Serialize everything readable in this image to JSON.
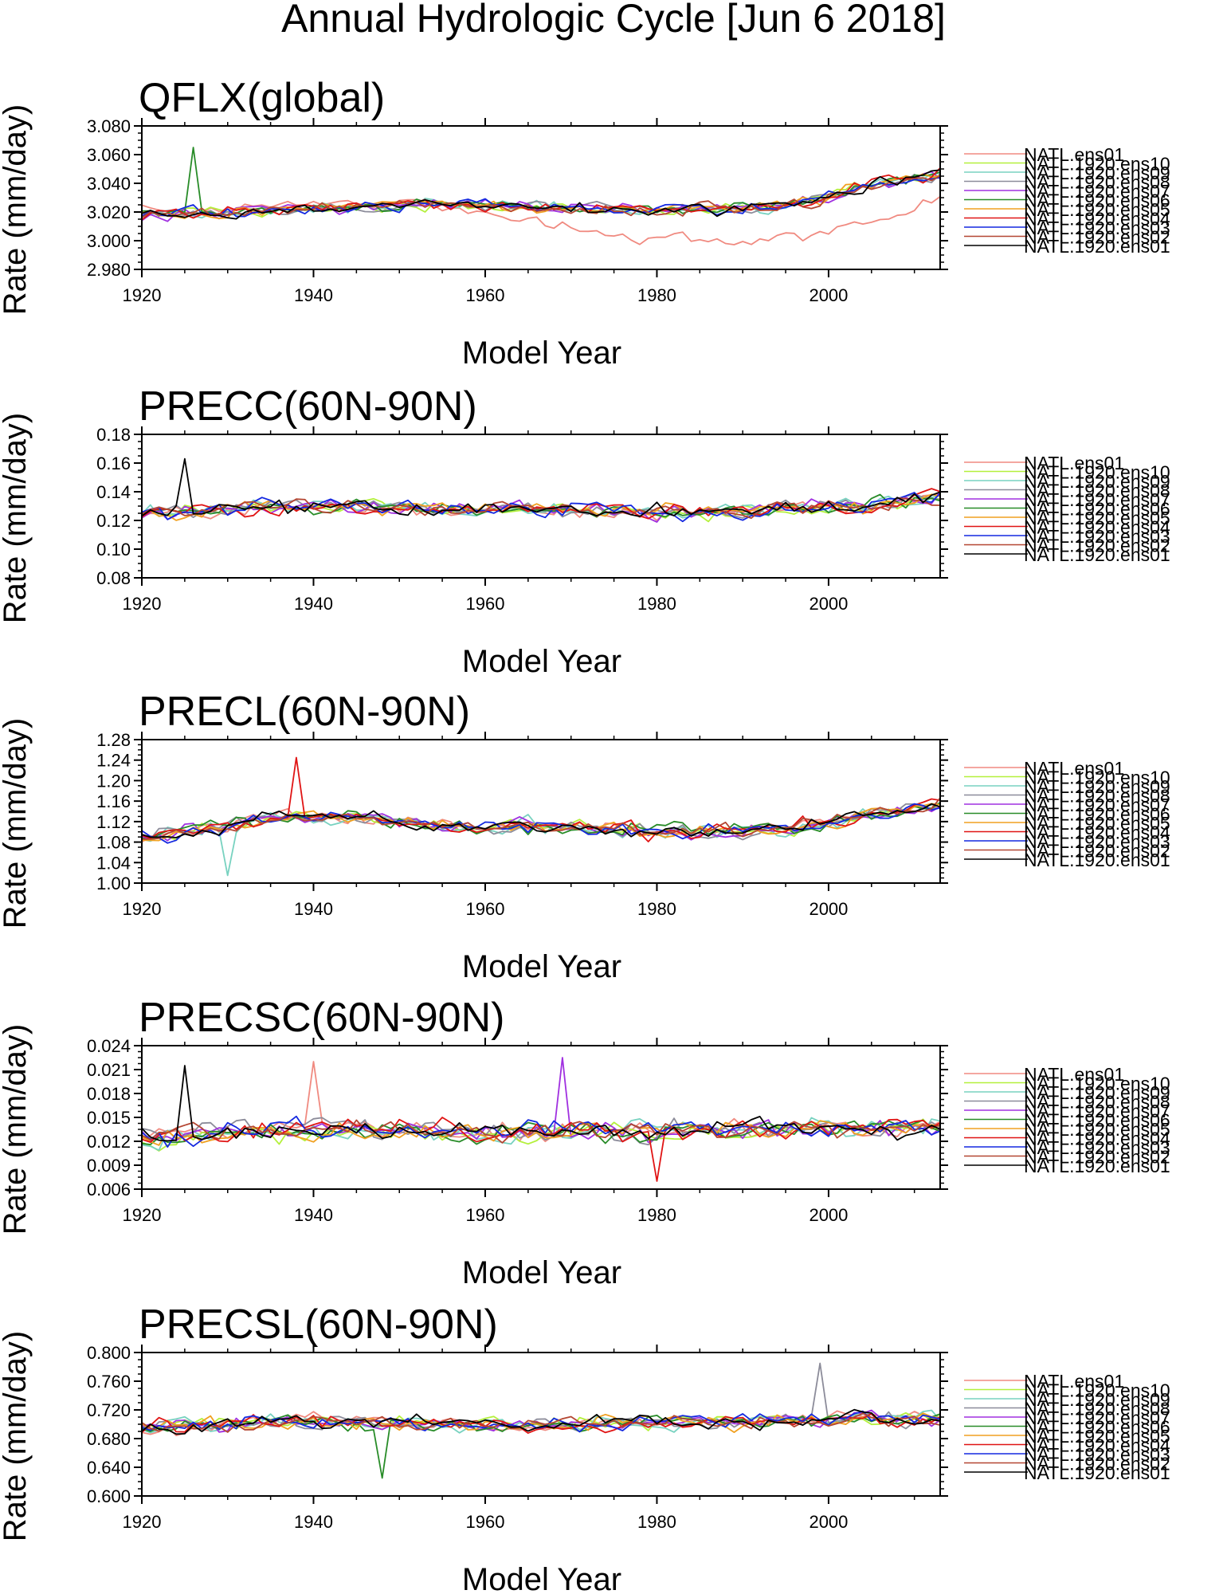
{
  "figure": {
    "title": "Annual Hydrologic Cycle [Jun  6 2018]"
  },
  "legend": {
    "entries": [
      {
        "name": "NATL.ens01",
        "color": "#f08a80"
      },
      {
        "name": "NATL.1920.ens10",
        "color": "#b4f03c"
      },
      {
        "name": "NATL.1920.ens09",
        "color": "#78d2c0"
      },
      {
        "name": "NATL.1920.ens08",
        "color": "#8c8c9a"
      },
      {
        "name": "NATL.1920.ens07",
        "color": "#a030e0"
      },
      {
        "name": "NATL.1920.ens06",
        "color": "#288c28"
      },
      {
        "name": "NATL.1920.ens05",
        "color": "#f0a020"
      },
      {
        "name": "NATL.1920.ens04",
        "color": "#e01414"
      },
      {
        "name": "NATL.1920.ens03",
        "color": "#1428e0"
      },
      {
        "name": "NATL.1920.ens02",
        "color": "#b44632"
      },
      {
        "name": "NATL.1920.ens01",
        "color": "#000000"
      }
    ]
  },
  "chart_data": [
    {
      "type": "line",
      "title": "QFLX(global)",
      "xlabel": "Model Year",
      "ylabel": "Rate (mm/day)",
      "xlim": [
        1920,
        2013
      ],
      "ylim": [
        2.98,
        3.08
      ],
      "xticks": [
        "1920",
        "1940",
        "1960",
        "1980",
        "2000"
      ],
      "yticks": [
        "2.980",
        "3.000",
        "3.020",
        "3.040",
        "3.060",
        "3.080"
      ],
      "x_start": 1920,
      "x_end": 2013,
      "series_base": [
        3.018,
        3.02,
        3.022,
        3.024,
        3.026,
        3.025,
        3.022,
        3.022,
        3.022,
        3.024,
        3.038,
        3.046
      ],
      "series_amplitude": 0.009,
      "overrides": [
        {
          "series": "NATL.ens01",
          "base": [
            3.02,
            3.022,
            3.025,
            3.026,
            3.026,
            3.018,
            3.008,
            3.0,
            3.0,
            3.004,
            3.012,
            3.03
          ],
          "amplitude": 0.01
        },
        {
          "series": "NATL.1920.ens06",
          "spikes": [
            [
              1926,
              3.065
            ]
          ]
        }
      ]
    },
    {
      "type": "line",
      "title": "PRECC(60N-90N)",
      "xlabel": "Model Year",
      "ylabel": "Rate (mm/day)",
      "xlim": [
        1920,
        2013
      ],
      "ylim": [
        0.08,
        0.18
      ],
      "xticks": [
        "1920",
        "1940",
        "1960",
        "1980",
        "2000"
      ],
      "yticks": [
        "0.08",
        "0.10",
        "0.12",
        "0.14",
        "0.16",
        "0.18"
      ],
      "x_start": 1920,
      "x_end": 2013,
      "series_base": [
        0.124,
        0.128,
        0.13,
        0.13,
        0.128,
        0.128,
        0.128,
        0.126,
        0.126,
        0.128,
        0.13,
        0.136
      ],
      "series_amplitude": 0.011,
      "overrides": [
        {
          "series": "NATL.1920.ens01",
          "spikes": [
            [
              1925,
              0.163
            ]
          ]
        }
      ]
    },
    {
      "type": "line",
      "title": "PRECL(60N-90N)",
      "xlabel": "Model Year",
      "ylabel": "Rate (mm/day)",
      "xlim": [
        1920,
        2013
      ],
      "ylim": [
        1.0,
        1.28
      ],
      "xticks": [
        "1920",
        "1940",
        "1960",
        "1980",
        "2000"
      ],
      "yticks": [
        "1.00",
        "1.04",
        "1.08",
        "1.12",
        "1.16",
        "1.20",
        "1.24",
        "1.28"
      ],
      "x_start": 1920,
      "x_end": 2013,
      "series_base": [
        1.09,
        1.11,
        1.13,
        1.13,
        1.11,
        1.11,
        1.11,
        1.1,
        1.1,
        1.11,
        1.13,
        1.15
      ],
      "series_amplitude": 0.03,
      "overrides": [
        {
          "series": "NATL.1920.ens04",
          "spikes": [
            [
              1938,
              1.245
            ]
          ]
        },
        {
          "series": "NATL.1920.ens09",
          "spikes": [
            [
              1930,
              1.015
            ]
          ]
        }
      ]
    },
    {
      "type": "line",
      "title": "PRECSC(60N-90N)",
      "xlabel": "Model Year",
      "ylabel": "Rate (mm/day)",
      "xlim": [
        1920,
        2013
      ],
      "ylim": [
        0.006,
        0.024
      ],
      "xticks": [
        "1920",
        "1940",
        "1960",
        "1980",
        "2000"
      ],
      "yticks": [
        "0.006",
        "0.009",
        "0.012",
        "0.015",
        "0.018",
        "0.021",
        "0.024"
      ],
      "x_start": 1920,
      "x_end": 2013,
      "series_base": [
        0.0125,
        0.013,
        0.0135,
        0.0135,
        0.0132,
        0.013,
        0.0132,
        0.0133,
        0.0134,
        0.0136,
        0.0138,
        0.0136
      ],
      "series_amplitude": 0.0028,
      "overrides": [
        {
          "series": "NATL.1920.ens01",
          "spikes": [
            [
              1925,
              0.0215
            ]
          ]
        },
        {
          "series": "NATL.1920.ens07",
          "spikes": [
            [
              1969,
              0.0225
            ]
          ]
        },
        {
          "series": "NATL.ens01",
          "spikes": [
            [
              1940,
              0.022
            ]
          ]
        },
        {
          "series": "NATL.1920.ens04",
          "spikes": [
            [
              1980,
              0.007
            ]
          ]
        }
      ]
    },
    {
      "type": "line",
      "title": "PRECSL(60N-90N)",
      "xlabel": "Model Year",
      "ylabel": "Rate (mm/day)",
      "xlim": [
        1920,
        2013
      ],
      "ylim": [
        0.6,
        0.8
      ],
      "xticks": [
        "1920",
        "1940",
        "1960",
        "1980",
        "2000"
      ],
      "yticks": [
        "0.600",
        "0.640",
        "0.680",
        "0.720",
        "0.760",
        "0.800"
      ],
      "x_start": 1920,
      "x_end": 2013,
      "series_base": [
        0.695,
        0.7,
        0.705,
        0.703,
        0.7,
        0.7,
        0.7,
        0.702,
        0.703,
        0.705,
        0.707,
        0.705
      ],
      "series_amplitude": 0.022,
      "overrides": [
        {
          "series": "NATL.1920.ens08",
          "spikes": [
            [
              1999,
              0.785
            ]
          ]
        },
        {
          "series": "NATL.1920.ens06",
          "spikes": [
            [
              1948,
              0.625
            ]
          ]
        }
      ]
    }
  ]
}
